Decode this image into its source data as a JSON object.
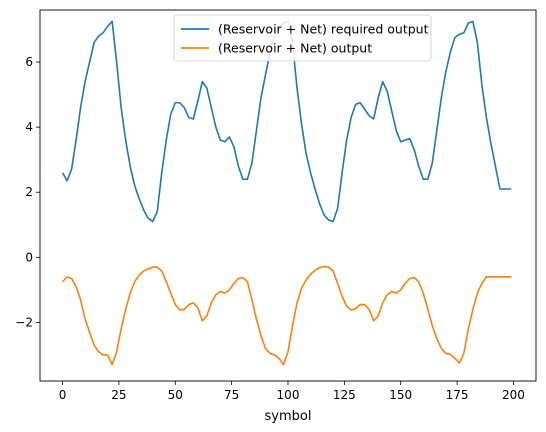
{
  "chart_data": {
    "type": "line",
    "title": "",
    "xlabel": "symbol",
    "ylabel": "",
    "xlim": [
      -10,
      210
    ],
    "ylim": [
      -3.8,
      7.6
    ],
    "grid": false,
    "legend_position": "top-center",
    "xticks": [
      0,
      25,
      50,
      75,
      100,
      125,
      150,
      175,
      200
    ],
    "yticks": [
      -2,
      0,
      2,
      4,
      6
    ],
    "ytick_labels": [
      "−2",
      "0",
      "2",
      "4",
      "6"
    ],
    "series": [
      {
        "name": "(Reservoir + Net) required output",
        "color": "#1f77b4",
        "x": [
          0,
          2,
          4,
          6,
          8,
          10,
          12,
          14,
          16,
          18,
          20,
          22,
          24,
          26,
          28,
          30,
          32,
          34,
          36,
          38,
          40,
          42,
          44,
          46,
          48,
          50,
          52,
          54,
          56,
          58,
          60,
          62,
          64,
          66,
          68,
          70,
          72,
          74,
          76,
          78,
          80,
          82,
          84,
          86,
          88,
          90,
          92,
          94,
          96,
          98,
          100,
          102,
          104,
          106,
          108,
          110,
          112,
          114,
          116,
          118,
          120,
          122,
          124,
          126,
          128,
          130,
          132,
          134,
          136,
          138,
          140,
          142,
          144,
          146,
          148,
          150,
          152,
          154,
          156,
          158,
          160,
          162,
          164,
          166,
          168,
          170,
          172,
          174,
          176,
          178,
          180,
          182,
          184,
          186,
          188,
          190,
          192,
          194,
          196,
          199
        ],
        "values": [
          2.6,
          2.35,
          2.7,
          3.6,
          4.6,
          5.4,
          6.0,
          6.6,
          6.8,
          6.9,
          7.1,
          7.25,
          6.0,
          4.6,
          3.6,
          2.8,
          2.2,
          1.8,
          1.45,
          1.2,
          1.1,
          1.4,
          2.6,
          3.6,
          4.4,
          4.75,
          4.75,
          4.6,
          4.3,
          4.25,
          4.8,
          5.4,
          5.2,
          4.6,
          4.0,
          3.6,
          3.55,
          3.7,
          3.4,
          2.8,
          2.4,
          2.4,
          2.9,
          3.9,
          4.9,
          5.6,
          6.3,
          6.8,
          7.1,
          7.2,
          7.25,
          6.6,
          5.2,
          4.1,
          3.2,
          2.6,
          2.1,
          1.65,
          1.3,
          1.15,
          1.1,
          1.5,
          2.6,
          3.6,
          4.3,
          4.7,
          4.75,
          4.55,
          4.35,
          4.25,
          4.9,
          5.4,
          5.1,
          4.5,
          3.9,
          3.55,
          3.6,
          3.65,
          3.3,
          2.8,
          2.4,
          2.4,
          2.9,
          3.9,
          4.9,
          5.7,
          6.3,
          6.75,
          6.85,
          6.9,
          7.2,
          7.25,
          6.6,
          5.3,
          4.3,
          3.5,
          2.8,
          2.1,
          2.1,
          2.1
        ]
      },
      {
        "name": "(Reservoir + Net) output",
        "color": "#ff7f0e",
        "x": [
          0,
          2,
          4,
          6,
          8,
          10,
          12,
          14,
          16,
          18,
          20,
          22,
          24,
          26,
          28,
          30,
          32,
          34,
          36,
          38,
          40,
          42,
          44,
          46,
          48,
          50,
          52,
          54,
          56,
          58,
          60,
          62,
          64,
          66,
          68,
          70,
          72,
          74,
          76,
          78,
          80,
          82,
          84,
          86,
          88,
          90,
          92,
          94,
          96,
          98,
          100,
          102,
          104,
          106,
          108,
          110,
          112,
          114,
          116,
          118,
          120,
          122,
          124,
          126,
          128,
          130,
          132,
          134,
          136,
          138,
          140,
          142,
          144,
          146,
          148,
          150,
          152,
          154,
          156,
          158,
          160,
          162,
          164,
          166,
          168,
          170,
          172,
          174,
          176,
          178,
          180,
          182,
          184,
          186,
          188,
          190,
          192,
          194,
          196,
          199
        ],
        "values": [
          -0.75,
          -0.6,
          -0.65,
          -0.9,
          -1.3,
          -1.9,
          -2.3,
          -2.7,
          -2.9,
          -3.0,
          -3.0,
          -3.3,
          -2.9,
          -2.2,
          -1.6,
          -1.1,
          -0.75,
          -0.55,
          -0.42,
          -0.35,
          -0.3,
          -0.3,
          -0.42,
          -0.75,
          -1.1,
          -1.45,
          -1.62,
          -1.6,
          -1.45,
          -1.4,
          -1.55,
          -1.95,
          -1.8,
          -1.4,
          -1.15,
          -1.05,
          -1.1,
          -1.0,
          -0.8,
          -0.65,
          -0.62,
          -0.75,
          -1.3,
          -1.9,
          -2.4,
          -2.8,
          -2.95,
          -3.0,
          -3.1,
          -3.3,
          -2.9,
          -2.1,
          -1.4,
          -0.95,
          -0.7,
          -0.52,
          -0.4,
          -0.32,
          -0.28,
          -0.3,
          -0.42,
          -0.8,
          -1.2,
          -1.5,
          -1.62,
          -1.58,
          -1.45,
          -1.45,
          -1.6,
          -1.95,
          -1.8,
          -1.4,
          -1.15,
          -1.05,
          -1.1,
          -1.0,
          -0.8,
          -0.65,
          -0.62,
          -0.75,
          -1.1,
          -1.6,
          -2.1,
          -2.5,
          -2.8,
          -2.95,
          -2.98,
          -3.1,
          -3.25,
          -2.95,
          -2.2,
          -1.6,
          -1.1,
          -0.8,
          -0.6,
          -0.6,
          -0.6,
          -0.6,
          -0.6,
          -0.6
        ]
      }
    ]
  }
}
